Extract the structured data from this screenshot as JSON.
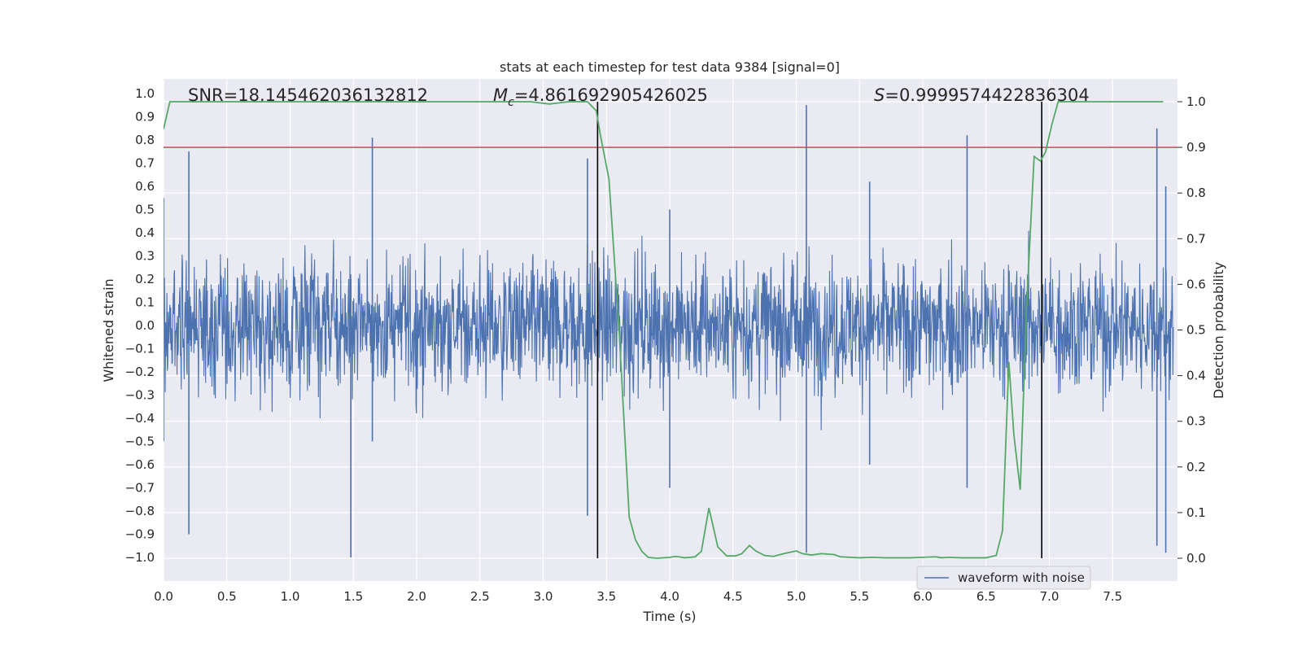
{
  "chart_data": {
    "type": "line",
    "title": "stats at each timestep for test data 9384 [signal=0]",
    "xlabel": "Time (s)",
    "ylabel": "Whitened strain",
    "y2label": "Detection probability",
    "xlim": [
      0.0,
      8.0
    ],
    "ylim": [
      -1.1,
      1.1
    ],
    "y2lim": [
      -0.05,
      1.05
    ],
    "xticks": [
      "0.0",
      "0.5",
      "1.0",
      "1.5",
      "2.0",
      "2.5",
      "3.0",
      "3.5",
      "4.0",
      "4.5",
      "5.0",
      "5.5",
      "6.0",
      "6.5",
      "7.0",
      "7.5"
    ],
    "yticks": [
      "1.0",
      "0.9",
      "0.8",
      "0.7",
      "0.6",
      "0.5",
      "0.4",
      "0.3",
      "0.2",
      "0.1",
      "0.0",
      "−0.1",
      "−0.2",
      "−0.3",
      "−0.4",
      "−0.5",
      "−0.6",
      "−0.7",
      "−0.8",
      "−0.9",
      "−1.0"
    ],
    "y2ticks": [
      "1.0",
      "0.9",
      "0.8",
      "0.7",
      "0.6",
      "0.5",
      "0.4",
      "0.3",
      "0.2",
      "0.1",
      "0.0"
    ],
    "annotations": {
      "snr": "SNR=18.145462036132812",
      "mc_symbol": "M",
      "mc_sub": "c",
      "mc_value": "=4.861692905426025",
      "s_symbol": "S",
      "s_value": "=0.9999574422836304"
    },
    "threshold": {
      "y2": 0.9,
      "color": "#c44e52"
    },
    "vlines": [
      3.43,
      6.94
    ],
    "series": [
      {
        "name": "waveform with noise",
        "axis": "left",
        "color": "#4c72b0",
        "description": "dense whitened noise time series",
        "x": [
          0.0,
          0.2,
          1.48,
          1.65,
          1.88,
          3.35,
          4.0,
          5.08,
          5.58,
          6.35,
          7.85,
          7.92
        ],
        "envelope_max": [
          0.55,
          0.75,
          0.2,
          0.81,
          0.1,
          0.72,
          0.5,
          0.95,
          0.62,
          0.82,
          0.85,
          0.6
        ],
        "envelope_min": [
          -0.5,
          -0.9,
          -1.0,
          -0.5,
          -0.15,
          -0.82,
          -0.7,
          -0.98,
          -0.6,
          -0.7,
          -0.95,
          -0.98
        ]
      },
      {
        "name": "detection probability",
        "axis": "right",
        "color": "#55a868",
        "x": [
          0.0,
          0.05,
          0.1,
          0.5,
          1.0,
          1.5,
          2.0,
          2.5,
          2.9,
          3.05,
          3.2,
          3.35,
          3.42,
          3.45,
          3.52,
          3.6,
          3.68,
          3.73,
          3.78,
          3.83,
          3.9,
          4.0,
          4.05,
          4.12,
          4.2,
          4.25,
          4.31,
          4.38,
          4.45,
          4.52,
          4.57,
          4.63,
          4.68,
          4.75,
          4.82,
          4.9,
          5.0,
          5.05,
          5.12,
          5.2,
          5.3,
          5.35,
          5.5,
          5.6,
          5.7,
          5.9,
          6.0,
          6.1,
          6.15,
          6.2,
          6.3,
          6.5,
          6.58,
          6.63,
          6.68,
          6.72,
          6.77,
          6.82,
          6.88,
          6.93,
          6.97,
          7.02,
          7.07,
          7.2,
          7.5,
          7.9
        ],
        "values": [
          0.94,
          1.0,
          1.0,
          1.0,
          1.0,
          1.0,
          1.0,
          1.0,
          1.0,
          0.995,
          1.0,
          1.0,
          0.98,
          0.93,
          0.83,
          0.5,
          0.09,
          0.04,
          0.015,
          0.002,
          0.0,
          0.002,
          0.004,
          0.001,
          0.003,
          0.015,
          0.11,
          0.025,
          0.005,
          0.005,
          0.01,
          0.028,
          0.016,
          0.006,
          0.004,
          0.01,
          0.016,
          0.01,
          0.007,
          0.01,
          0.008,
          0.003,
          0.001,
          0.002,
          0.001,
          0.001,
          0.002,
          0.003,
          0.001,
          0.002,
          0.001,
          0.001,
          0.006,
          0.06,
          0.43,
          0.27,
          0.15,
          0.55,
          0.88,
          0.87,
          0.89,
          0.95,
          1.0,
          1.0,
          1.0,
          1.0
        ]
      }
    ],
    "legend": {
      "label": "waveform with noise",
      "placement": "lower-right"
    }
  }
}
